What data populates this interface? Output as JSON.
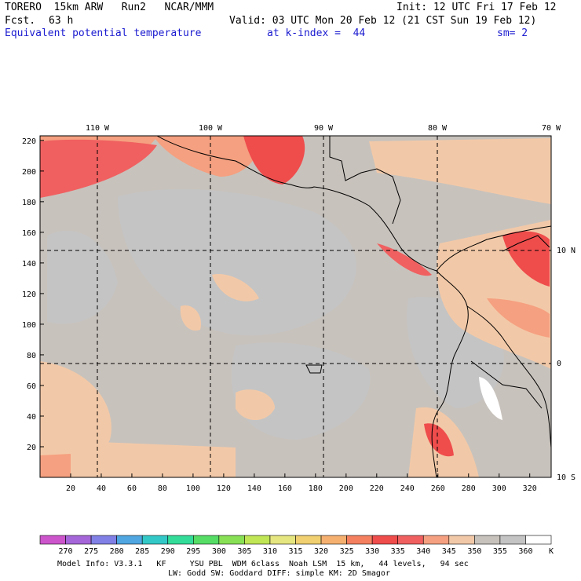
{
  "header": {
    "model": "TORERO  15km ARW   Run2   NCAR/MMM",
    "init": "Init: 12 UTC Fri 17 Feb 12",
    "fcst_label": "Fcst.",
    "fcst_hours": "63 h",
    "valid": "Valid: 03 UTC Mon 20 Feb 12 (21 CST Sun 19 Feb 12)",
    "field": "Equivalent potential temperature",
    "level": "at k-index =  44",
    "smoothing": "sm= 2"
  },
  "map": {
    "top_lon_labels": [
      "110 W",
      "100 W",
      "90 W",
      "80 W",
      "70 W"
    ],
    "right_lat_labels": [
      "10 N",
      "0",
      "10 S"
    ],
    "x_ticks": [
      "20",
      "40",
      "60",
      "80",
      "100",
      "120",
      "140",
      "160",
      "180",
      "200",
      "220",
      "240",
      "260",
      "280",
      "300",
      "320"
    ],
    "y_ticks": [
      "20",
      "40",
      "60",
      "80",
      "100",
      "120",
      "140",
      "160",
      "180",
      "200",
      "220"
    ]
  },
  "colorbar": {
    "unit": "K",
    "levels": [
      "270",
      "275",
      "280",
      "285",
      "290",
      "295",
      "300",
      "305",
      "310",
      "315",
      "320",
      "325",
      "330",
      "335",
      "340",
      "345",
      "350",
      "355",
      "360"
    ],
    "colors": [
      "#cc55cc",
      "#a566d9",
      "#8080e6",
      "#4fa6e0",
      "#33c8c8",
      "#33dd99",
      "#55dd66",
      "#88e055",
      "#c0e655",
      "#e6e680",
      "#f0d070",
      "#f5b070",
      "#f58060",
      "#ef4c4c",
      "#f06060",
      "#f5a080",
      "#f2c9a8",
      "#c8c2bc",
      "#c4c4c4",
      "#ffffff"
    ]
  },
  "footer": {
    "line1": "Model Info: V3.3.1   KF     YSU PBL  WDM 6class  Noah LSM  15 km,   44 levels,   94 sec",
    "line2": "LW: Godd SW: Goddard DIFF: simple KM: 2D Smagor"
  }
}
